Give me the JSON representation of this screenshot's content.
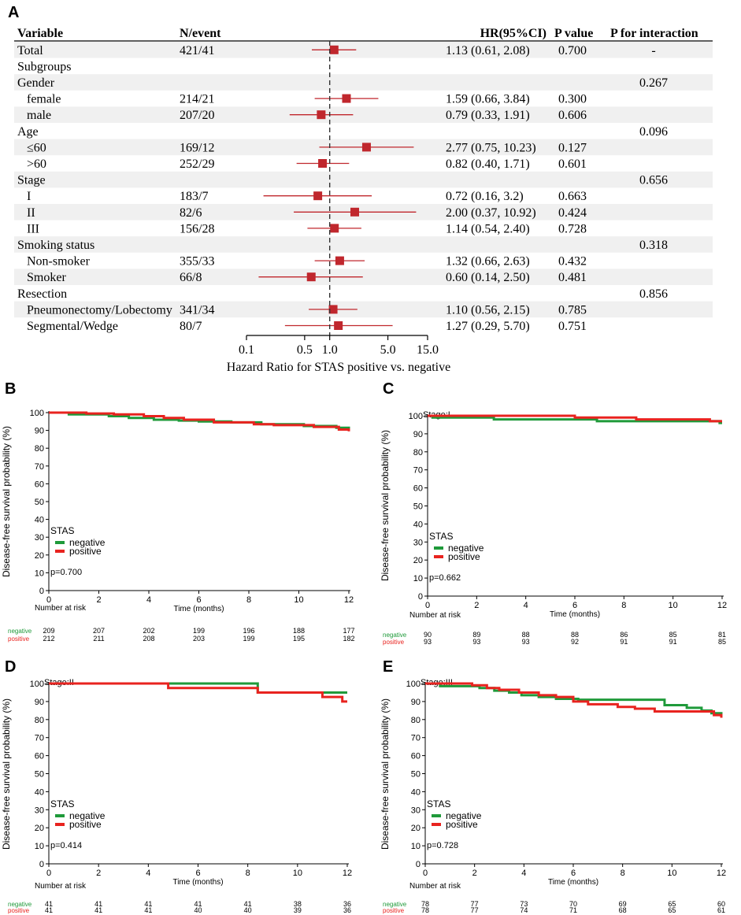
{
  "colors": {
    "stripe": "#f0f0f0",
    "forest_marker": "#c0272d",
    "negative": "#1f9a3a",
    "positive": "#e8231f",
    "axis": "#000000"
  },
  "panel_a": {
    "label": "A",
    "headers": {
      "variable": "Variable",
      "n_event": "N/event",
      "hr": "HR(95%CI)",
      "p_value": "P value",
      "p_interaction": "P for interaction"
    },
    "rows": [
      {
        "variable": "Total",
        "indent": false,
        "n_event": "421/41",
        "hr_text": "1.13 (0.61, 2.08)",
        "p": "0.700",
        "p_int": "-",
        "hr": 1.13,
        "lo": 0.61,
        "hi": 2.08
      },
      {
        "variable": "Subgroups",
        "indent": false,
        "n_event": "",
        "hr_text": "",
        "p": "",
        "p_int": ""
      },
      {
        "variable": "Gender",
        "indent": false,
        "n_event": "",
        "hr_text": "",
        "p": "",
        "p_int": "0.267"
      },
      {
        "variable": "female",
        "indent": true,
        "n_event": "214/21",
        "hr_text": "1.59 (0.66, 3.84)",
        "p": "0.300",
        "p_int": "",
        "hr": 1.59,
        "lo": 0.66,
        "hi": 3.84
      },
      {
        "variable": "male",
        "indent": true,
        "n_event": "207/20",
        "hr_text": "0.79 (0.33, 1.91)",
        "p": "0.606",
        "p_int": "",
        "hr": 0.79,
        "lo": 0.33,
        "hi": 1.91
      },
      {
        "variable": "Age",
        "indent": false,
        "n_event": "",
        "hr_text": "",
        "p": "",
        "p_int": "0.096"
      },
      {
        "variable": "≤60",
        "indent": true,
        "n_event": "169/12",
        "hr_text": "2.77 (0.75, 10.23)",
        "p": "0.127",
        "p_int": "",
        "hr": 2.77,
        "lo": 0.75,
        "hi": 10.23
      },
      {
        "variable": ">60",
        "indent": true,
        "n_event": "252/29",
        "hr_text": "0.82 (0.40, 1.71)",
        "p": "0.601",
        "p_int": "",
        "hr": 0.82,
        "lo": 0.4,
        "hi": 1.71
      },
      {
        "variable": "Stage",
        "indent": false,
        "n_event": "",
        "hr_text": "",
        "p": "",
        "p_int": "0.656"
      },
      {
        "variable": "I",
        "indent": true,
        "n_event": "183/7",
        "hr_text": "0.72 (0.16, 3.2)",
        "p": "0.663",
        "p_int": "",
        "hr": 0.72,
        "lo": 0.16,
        "hi": 3.2
      },
      {
        "variable": "II",
        "indent": true,
        "n_event": "82/6",
        "hr_text": "2.00 (0.37, 10.92)",
        "p": "0.424",
        "p_int": "",
        "hr": 2.0,
        "lo": 0.37,
        "hi": 10.92
      },
      {
        "variable": "III",
        "indent": true,
        "n_event": "156/28",
        "hr_text": "1.14 (0.54, 2.40)",
        "p": "0.728",
        "p_int": "",
        "hr": 1.14,
        "lo": 0.54,
        "hi": 2.4
      },
      {
        "variable": "Smoking status",
        "indent": false,
        "n_event": "",
        "hr_text": "",
        "p": "",
        "p_int": "0.318"
      },
      {
        "variable": "Non-smoker",
        "indent": true,
        "n_event": "355/33",
        "hr_text": "1.32 (0.66, 2.63)",
        "p": "0.432",
        "p_int": "",
        "hr": 1.32,
        "lo": 0.66,
        "hi": 2.63
      },
      {
        "variable": "Smoker",
        "indent": true,
        "n_event": "66/8",
        "hr_text": "0.60 (0.14, 2.50)",
        "p": "0.481",
        "p_int": "",
        "hr": 0.6,
        "lo": 0.14,
        "hi": 2.5
      },
      {
        "variable": "Resection",
        "indent": false,
        "n_event": "",
        "hr_text": "",
        "p": "",
        "p_int": "0.856"
      },
      {
        "variable": "Pneumonectomy/Lobectomy",
        "indent": true,
        "n_event": "341/34",
        "hr_text": "1.10 (0.56, 2.15)",
        "p": "0.785",
        "p_int": "",
        "hr": 1.1,
        "lo": 0.56,
        "hi": 2.15
      },
      {
        "variable": "Segmental/Wedge",
        "indent": true,
        "n_event": "80/7",
        "hr_text": "1.27 (0.29, 5.70)",
        "p": "0.751",
        "p_int": "",
        "hr": 1.27,
        "lo": 0.29,
        "hi": 5.7
      }
    ],
    "x_ticks": [
      {
        "value": 0.1,
        "label": "0.1"
      },
      {
        "value": 0.5,
        "label": "0.5"
      },
      {
        "value": 1.0,
        "label": "1.0"
      },
      {
        "value": 5.0,
        "label": "5.0"
      },
      {
        "value": 15.0,
        "label": "15.0"
      }
    ],
    "xlabel": "Hazard Ratio for STAS positive vs. negative"
  },
  "chart_data": [
    {
      "type": "forest",
      "panel": "A",
      "xscale": "log",
      "xlim": [
        0.1,
        15.0
      ],
      "reference_line": 1.0,
      "xlabel": "Hazard Ratio for STAS positive vs. negative",
      "points": [
        {
          "label": "Total",
          "hr": 1.13,
          "lo": 0.61,
          "hi": 2.08
        },
        {
          "label": "female",
          "hr": 1.59,
          "lo": 0.66,
          "hi": 3.84
        },
        {
          "label": "male",
          "hr": 0.79,
          "lo": 0.33,
          "hi": 1.91
        },
        {
          "label": "≤60",
          "hr": 2.77,
          "lo": 0.75,
          "hi": 10.23
        },
        {
          "label": ">60",
          "hr": 0.82,
          "lo": 0.4,
          "hi": 1.71
        },
        {
          "label": "I",
          "hr": 0.72,
          "lo": 0.16,
          "hi": 3.2
        },
        {
          "label": "II",
          "hr": 2.0,
          "lo": 0.37,
          "hi": 10.92
        },
        {
          "label": "III",
          "hr": 1.14,
          "lo": 0.54,
          "hi": 2.4
        },
        {
          "label": "Non-smoker",
          "hr": 1.32,
          "lo": 0.66,
          "hi": 2.63
        },
        {
          "label": "Smoker",
          "hr": 0.6,
          "lo": 0.14,
          "hi": 2.5
        },
        {
          "label": "Pneumonectomy/Lobectomy",
          "hr": 1.1,
          "lo": 0.56,
          "hi": 2.15
        },
        {
          "label": "Segmental/Wedge",
          "hr": 1.27,
          "lo": 0.29,
          "hi": 5.7
        }
      ]
    },
    {
      "type": "line",
      "panel": "B",
      "title": "",
      "xlabel": "Time (months)",
      "ylabel": "Disease-free survival probability (%)",
      "xlim": [
        0,
        12
      ],
      "ylim": [
        0,
        100
      ],
      "x_ticks": [
        0,
        2,
        4,
        6,
        8,
        10,
        12
      ],
      "y_ticks": [
        0,
        10,
        20,
        30,
        40,
        50,
        60,
        70,
        80,
        90,
        100
      ],
      "legend_title": "STAS",
      "pvalue": "p=0.700",
      "series": [
        {
          "name": "negative",
          "x": [
            0,
            0.8,
            2.4,
            3.2,
            4.2,
            5.2,
            6.0,
            7.3,
            8.5,
            10.2,
            11.5,
            12
          ],
          "y": [
            100,
            99,
            98,
            97,
            96,
            95.5,
            95,
            94.5,
            93.5,
            92.5,
            91.5,
            90.5
          ]
        },
        {
          "name": "positive",
          "x": [
            0,
            1.5,
            2.6,
            3.8,
            4.6,
            5.4,
            6.6,
            8.2,
            9.0,
            10.6,
            11.6,
            12
          ],
          "y": [
            100,
            99.5,
            99,
            98,
            97,
            96,
            94.5,
            93.5,
            93,
            92,
            90.5,
            89.5
          ]
        }
      ],
      "risk_table": {
        "title": "Number at risk",
        "times": [
          0,
          2,
          4,
          6,
          8,
          10,
          12
        ],
        "rows": [
          {
            "name": "negative",
            "values": [
              "209",
              "207",
              "202",
              "199",
              "196",
              "188",
              "177"
            ]
          },
          {
            "name": "positive",
            "values": [
              "212",
              "211",
              "208",
              "203",
              "199",
              "195",
              "182"
            ]
          }
        ]
      }
    },
    {
      "type": "line",
      "panel": "C",
      "title": "Stage:I",
      "xlabel": "Time (months)",
      "ylabel": "Disease-free survival probability (%)",
      "xlim": [
        0,
        12
      ],
      "ylim": [
        0,
        100
      ],
      "x_ticks": [
        0,
        2,
        4,
        6,
        8,
        10,
        12
      ],
      "y_ticks": [
        0,
        10,
        20,
        30,
        40,
        50,
        60,
        70,
        80,
        90,
        100
      ],
      "legend_title": "STAS",
      "pvalue": "p=0.662",
      "series": [
        {
          "name": "negative",
          "x": [
            0,
            0.2,
            2.7,
            6.9,
            11.9,
            12
          ],
          "y": [
            100,
            99,
            98,
            97,
            96,
            96
          ]
        },
        {
          "name": "positive",
          "x": [
            0,
            5.4,
            6.0,
            8.5,
            11.5,
            12
          ],
          "y": [
            100,
            100,
            99,
            98,
            97,
            97
          ]
        }
      ],
      "risk_table": {
        "title": "Number at risk",
        "times": [
          0,
          2,
          4,
          6,
          8,
          10,
          12
        ],
        "rows": [
          {
            "name": "negative",
            "values": [
              "90",
              "89",
              "88",
              "88",
              "86",
              "85",
              "81"
            ]
          },
          {
            "name": "positive",
            "values": [
              "93",
              "93",
              "93",
              "92",
              "91",
              "91",
              "85"
            ]
          }
        ]
      }
    },
    {
      "type": "line",
      "panel": "D",
      "title": "Stage:II",
      "xlabel": "Time (months)",
      "ylabel": "Disease-free survival probability (%)",
      "xlim": [
        0,
        12
      ],
      "ylim": [
        0,
        100
      ],
      "x_ticks": [
        0,
        2,
        4,
        6,
        8,
        10,
        12
      ],
      "y_ticks": [
        0,
        10,
        20,
        30,
        40,
        50,
        60,
        70,
        80,
        90,
        100
      ],
      "legend_title": "STAS",
      "pvalue": "p=0.414",
      "series": [
        {
          "name": "negative",
          "x": [
            0,
            8.2,
            8.4,
            12
          ],
          "y": [
            100,
            100,
            95,
            95
          ]
        },
        {
          "name": "positive",
          "x": [
            0,
            4.8,
            8.4,
            11.0,
            11.8,
            12
          ],
          "y": [
            100,
            97.5,
            95,
            92.5,
            90,
            90
          ]
        }
      ],
      "risk_table": {
        "title": "Number at risk",
        "times": [
          0,
          2,
          4,
          6,
          8,
          10,
          12
        ],
        "rows": [
          {
            "name": "negative",
            "values": [
              "41",
              "41",
              "41",
              "41",
              "41",
              "38",
              "36"
            ]
          },
          {
            "name": "positive",
            "values": [
              "41",
              "41",
              "41",
              "40",
              "40",
              "39",
              "36"
            ]
          }
        ]
      }
    },
    {
      "type": "line",
      "panel": "E",
      "title": "Stage:III",
      "xlabel": "Time (months)",
      "ylabel": "Disease-free survival probability (%)",
      "xlim": [
        0,
        12
      ],
      "ylim": [
        0,
        100
      ],
      "x_ticks": [
        0,
        2,
        4,
        6,
        8,
        10,
        12
      ],
      "y_ticks": [
        0,
        10,
        20,
        30,
        40,
        50,
        60,
        70,
        80,
        90,
        100
      ],
      "legend_title": "STAS",
      "pvalue": "p=0.728",
      "series": [
        {
          "name": "negative",
          "x": [
            0,
            0.6,
            2.2,
            2.8,
            3.4,
            3.9,
            4.6,
            5.3,
            6.2,
            7.4,
            9.7,
            10.6,
            11.2,
            11.6,
            12
          ],
          "y": [
            100,
            98.5,
            97.5,
            96,
            95,
            93.5,
            92.5,
            91.5,
            91,
            91,
            88,
            86.5,
            85,
            83.5,
            82.5
          ]
        },
        {
          "name": "positive",
          "x": [
            0,
            1.9,
            2.5,
            3.0,
            3.8,
            4.6,
            5.3,
            6.0,
            6.6,
            7.8,
            8.5,
            9.3,
            11.0,
            11.7,
            12
          ],
          "y": [
            100,
            99,
            97.5,
            96.5,
            95,
            93.5,
            92.5,
            90,
            88.5,
            87,
            86,
            84.5,
            84.5,
            82.5,
            81
          ]
        }
      ],
      "risk_table": {
        "title": "Number at risk",
        "times": [
          0,
          2,
          4,
          6,
          8,
          10,
          12
        ],
        "rows": [
          {
            "name": "negative",
            "values": [
              "78",
              "77",
              "73",
              "70",
              "69",
              "65",
              "60"
            ]
          },
          {
            "name": "positive",
            "values": [
              "78",
              "77",
              "74",
              "71",
              "68",
              "65",
              "61"
            ]
          }
        ]
      }
    }
  ]
}
